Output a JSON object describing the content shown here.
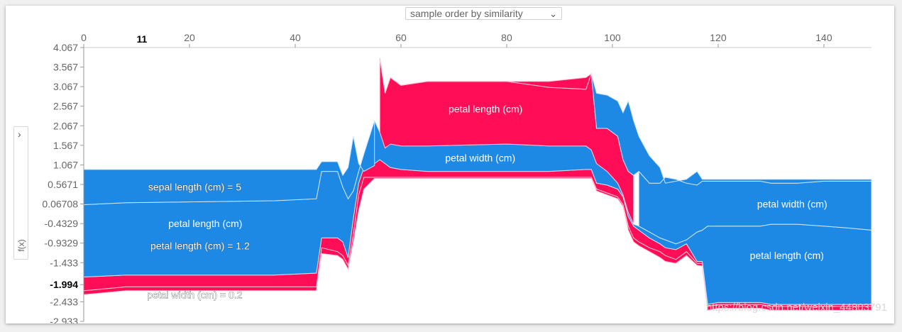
{
  "controls": {
    "order_select": "sample order by similarity",
    "yaxis_toggle_arrow": "›",
    "yaxis_label": "f(x)"
  },
  "watermark": "https://blog.csdn.net/weixin_44803791",
  "colors": {
    "pos": "#ff0d57",
    "neg": "#1e88e5",
    "edge_pos": "#ffc3d5",
    "edge_neg": "#d1e6fa"
  },
  "chart_data": {
    "type": "area",
    "xlim": [
      0,
      149
    ],
    "ylim": [
      -2.933,
      4.067
    ],
    "x_ticks": [
      0,
      20,
      40,
      60,
      80,
      100,
      120,
      140
    ],
    "x_highlight": 11,
    "y_ticks": [
      4.067,
      3.567,
      3.067,
      2.567,
      2.067,
      1.567,
      1.067,
      0.5671,
      0.06708,
      -0.4329,
      -0.9329,
      -1.433,
      -1.994,
      -2.433,
      -2.933
    ],
    "y_highlight": -1.994,
    "x": [
      0,
      8,
      36,
      44,
      45,
      48,
      49,
      50,
      51,
      52,
      53,
      55,
      56,
      57,
      58,
      60,
      65,
      80,
      88,
      95,
      96,
      97,
      99,
      101,
      102,
      103,
      104,
      105,
      107,
      109,
      110,
      112,
      114,
      116,
      117,
      118,
      120,
      128,
      130,
      135,
      140,
      145,
      149
    ],
    "boundaries": [
      [
        -2.25,
        -2.15,
        -2.15,
        -2.15,
        -1.2,
        -1.25,
        -1.35,
        -1.6,
        -0.9,
        -0.1,
        0.45,
        0.72,
        0.72,
        0.72,
        0.72,
        0.72,
        0.72,
        0.72,
        0.72,
        0.72,
        0.72,
        0.4,
        0.3,
        0.2,
        0.0,
        -0.6,
        -0.9,
        -1.0,
        -1.15,
        -1.3,
        -1.4,
        -1.45,
        -1.25,
        -1.5,
        -1.52,
        -2.65,
        -2.6,
        -2.6,
        -2.65,
        -2.65,
        -2.65,
        -2.65,
        -2.65
      ],
      [
        -2.15,
        -2.05,
        -2.05,
        -2.05,
        -1.05,
        -1.15,
        -1.25,
        -1.5,
        -0.7,
        0.3,
        0.75,
        0.75,
        0.75,
        0.75,
        0.75,
        0.75,
        0.75,
        0.75,
        0.75,
        0.75,
        0.75,
        0.45,
        0.35,
        0.25,
        0.05,
        -0.5,
        -0.8,
        -0.9,
        -1.05,
        -1.15,
        -1.25,
        -1.35,
        -1.15,
        -1.45,
        -1.45,
        -2.55,
        -2.5,
        -2.5,
        -2.55,
        -2.55,
        -2.55,
        -2.55,
        -2.55
      ],
      [
        -1.8,
        -1.75,
        -1.75,
        -1.7,
        -0.8,
        -0.8,
        -0.9,
        -1.3,
        -0.3,
        0.6,
        1.0,
        1.1,
        1.2,
        1.1,
        1.0,
        0.95,
        0.9,
        0.9,
        0.9,
        0.95,
        0.95,
        0.6,
        0.55,
        0.45,
        0.25,
        -0.25,
        -0.5,
        -0.6,
        -0.8,
        -0.95,
        -1.05,
        -1.1,
        -0.95,
        -1.4,
        -1.4,
        -2.5,
        -2.45,
        -2.45,
        -2.5,
        -2.5,
        -2.5,
        -2.5,
        -2.5
      ],
      [
        0.05,
        0.1,
        0.15,
        0.2,
        0.9,
        0.9,
        0.5,
        0.2,
        0.4,
        0.9,
        1.35,
        2.2,
        1.9,
        1.5,
        1.6,
        1.55,
        1.55,
        1.6,
        1.55,
        1.55,
        1.45,
        1.1,
        0.9,
        0.6,
        0.3,
        -0.15,
        -0.45,
        -0.5,
        -0.65,
        -0.8,
        -0.85,
        -0.95,
        -0.85,
        -0.65,
        -0.6,
        -0.5,
        -0.5,
        -0.5,
        -0.45,
        -0.45,
        -0.5,
        -0.55,
        -0.6
      ],
      [
        0.95,
        0.95,
        0.95,
        0.95,
        1.15,
        1.15,
        0.8,
        1.0,
        1.8,
        1.1,
        0.9,
        1.05,
        3.8,
        2.9,
        3.3,
        3.1,
        3.2,
        3.2,
        3.05,
        3.0,
        3.4,
        2.0,
        2.0,
        1.8,
        1.2,
        0.9,
        0.8,
        0.9,
        0.6,
        0.6,
        0.75,
        0.7,
        0.6,
        0.55,
        0.65,
        0.65,
        0.65,
        0.65,
        0.6,
        0.6,
        0.65,
        0.65,
        0.65
      ],
      [
        0.95,
        0.95,
        0.95,
        0.95,
        1.15,
        1.15,
        0.8,
        1.0,
        1.8,
        1.1,
        0.9,
        1.05,
        3.8,
        2.9,
        3.3,
        3.1,
        3.2,
        3.2,
        3.2,
        3.3,
        3.4,
        2.9,
        2.85,
        2.7,
        2.4,
        2.7,
        2.2,
        1.8,
        1.3,
        1.0,
        0.6,
        0.65,
        0.7,
        0.9,
        0.7,
        0.7,
        0.7,
        0.7,
        0.7,
        0.7,
        0.7,
        0.7,
        0.7
      ]
    ],
    "bands": [
      {
        "from": 0,
        "to": 1,
        "effect": "positive"
      },
      {
        "from": 1,
        "to": 2,
        "effect": "positive"
      },
      {
        "from": 2,
        "to": 3,
        "effect": "negative"
      },
      {
        "from": 3,
        "to": 4,
        "effect": "negative",
        "range": [
          0,
          55
        ]
      },
      {
        "from": 3,
        "to": 4,
        "effect": "positive",
        "range": [
          56,
          104
        ]
      },
      {
        "from": 3,
        "to": 4,
        "effect": "negative",
        "range": [
          105,
          149
        ]
      },
      {
        "from": 4,
        "to": 5,
        "effect": "positive",
        "range": [
          56,
          104
        ]
      },
      {
        "from": 4,
        "to": 5,
        "effect": "negative",
        "range": [
          96,
          149
        ]
      }
    ],
    "annotations": [
      {
        "text": "sepal length (cm) = 5",
        "x": 21,
        "y": 0.5,
        "outlined": true
      },
      {
        "text": "petal length (cm)",
        "x": 23,
        "y": -0.43,
        "outlined": false
      },
      {
        "text": "petal length (cm) = 1.2",
        "x": 22,
        "y": -1.0,
        "outlined": true
      },
      {
        "text": "petal width (cm) = 0.2",
        "x": 21,
        "y": -2.25,
        "outlined": true
      },
      {
        "text": "petal length (cm)",
        "x": 76,
        "y": 2.5,
        "outlined": false
      },
      {
        "text": "petal width (cm)",
        "x": 75,
        "y": 1.25,
        "outlined": false
      },
      {
        "text": "petal width (cm)",
        "x": 134,
        "y": 0.07,
        "outlined": false
      },
      {
        "text": "petal length (cm)",
        "x": 133,
        "y": -1.25,
        "outlined": false
      }
    ]
  }
}
